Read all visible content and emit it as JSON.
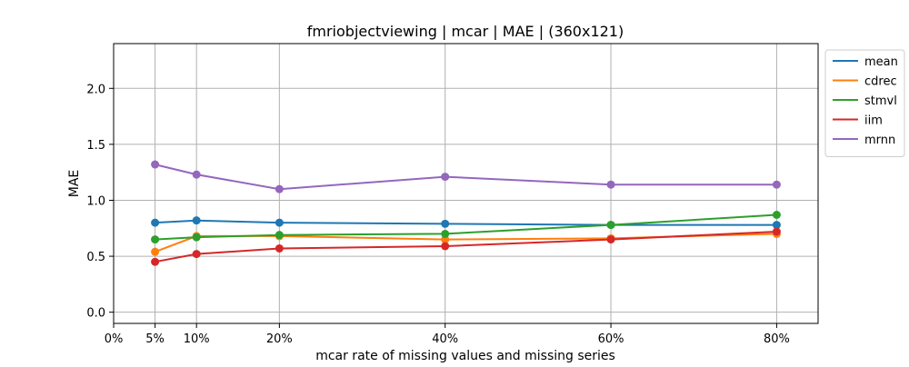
{
  "chart_data": {
    "type": "line",
    "title": "fmriobjectviewing | mcar | MAE | (360x121)",
    "xlabel": "mcar rate of missing values and missing series",
    "ylabel": "MAE",
    "x": [
      5,
      10,
      20,
      40,
      60,
      80
    ],
    "x_ticks": [
      0,
      5,
      10,
      20,
      40,
      60,
      80
    ],
    "x_tick_labels": [
      "0%",
      "5%",
      "10%",
      "20%",
      "40%",
      "60%",
      "80%"
    ],
    "xlim": [
      0,
      85
    ],
    "ylim": [
      -0.1,
      2.4
    ],
    "y_ticks": [
      0.0,
      0.5,
      1.0,
      1.5,
      2.0
    ],
    "y_tick_labels": [
      "0.0",
      "0.5",
      "1.0",
      "1.5",
      "2.0"
    ],
    "grid": true,
    "legend_position": "outside-top-right",
    "series": [
      {
        "name": "mean",
        "color": "#1f77b4",
        "values": [
          0.8,
          0.82,
          0.8,
          0.79,
          0.78,
          0.78
        ]
      },
      {
        "name": "cdrec",
        "color": "#ff7f0e",
        "values": [
          0.54,
          0.68,
          0.68,
          0.65,
          0.66,
          0.7
        ]
      },
      {
        "name": "stmvl",
        "color": "#2ca02c",
        "values": [
          0.65,
          0.67,
          0.69,
          0.7,
          0.78,
          0.87
        ]
      },
      {
        "name": "iim",
        "color": "#d62728",
        "values": [
          0.45,
          0.52,
          0.57,
          0.59,
          0.65,
          0.72
        ]
      },
      {
        "name": "mrnn",
        "color": "#9467bd",
        "values": [
          1.32,
          1.23,
          1.1,
          1.21,
          1.14,
          1.14
        ]
      }
    ]
  }
}
